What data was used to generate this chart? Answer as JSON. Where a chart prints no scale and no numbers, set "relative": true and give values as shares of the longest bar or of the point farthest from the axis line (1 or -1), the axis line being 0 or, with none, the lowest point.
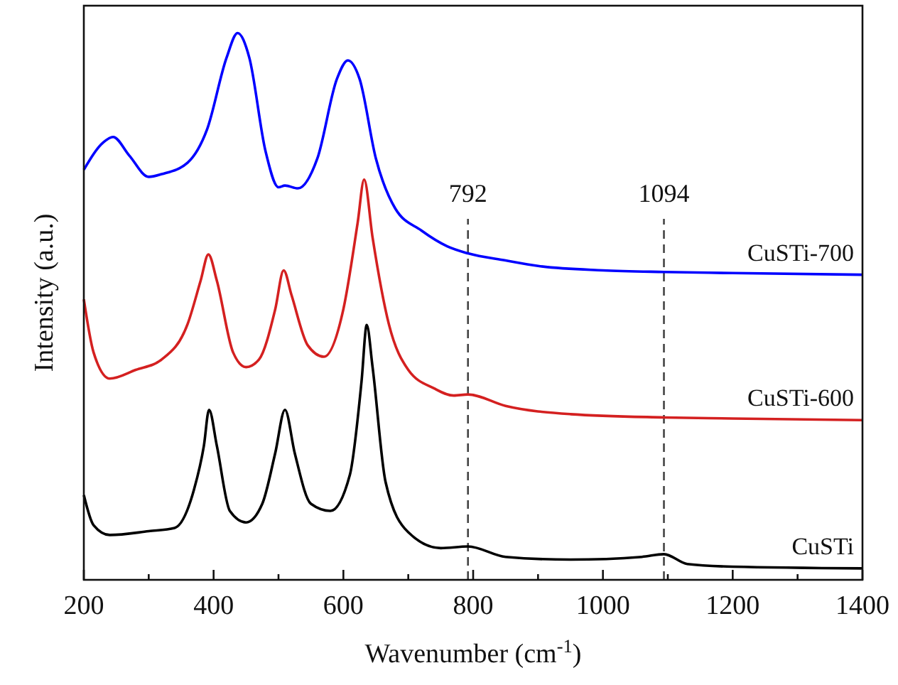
{
  "chart_data": {
    "type": "line",
    "relative": true,
    "xlabel": "Wavenumber (cm$^{-1}$)",
    "ylabel": "Intensity (a.u.)",
    "xlim": [
      200,
      1400
    ],
    "xticks": [
      200,
      400,
      600,
      800,
      1000,
      1200,
      1400
    ],
    "grid": false,
    "legend": false,
    "series": [
      {
        "name": "CuSTi-700",
        "color": "#0000ff",
        "x": [
          200,
          230,
          245,
          270,
          300,
          320,
          360,
          390,
          420,
          437,
          455,
          480,
          500,
          510,
          530,
          560,
          590,
          607,
          625,
          650,
          680,
          720,
          760,
          792,
          850,
          900,
          1000,
          1094,
          1200,
          1400
        ],
        "values": [
          0.75,
          0.8,
          0.81,
          0.776,
          0.737,
          0.742,
          0.763,
          0.824,
          0.955,
          1,
          0.955,
          0.784,
          0.718,
          0.721,
          0.716,
          0.771,
          0.916,
          0.95,
          0.916,
          0.771,
          0.679,
          0.639,
          0.61,
          0.597,
          0.584,
          0.574,
          0.566,
          0.563,
          0.561,
          0.558
        ]
      },
      {
        "name": "CuSTi-600",
        "color": "#d42020",
        "x": [
          200,
          215,
          240,
          280,
          320,
          360,
          380,
          392,
          405,
          430,
          450,
          470,
          495,
          508,
          520,
          545,
          570,
          600,
          622,
          632,
          645,
          670,
          700,
          740,
          770,
          792,
          850,
          950,
          1094,
          1200,
          1400
        ],
        "values": [
          0.513,
          0.416,
          0.368,
          0.384,
          0.403,
          0.468,
          0.547,
          0.595,
          0.547,
          0.416,
          0.389,
          0.403,
          0.495,
          0.566,
          0.521,
          0.429,
          0.408,
          0.495,
          0.653,
          0.732,
          0.626,
          0.468,
          0.384,
          0.35,
          0.337,
          0.339,
          0.318,
          0.303,
          0.297,
          0.295,
          0.292
        ]
      },
      {
        "name": "CuSTi",
        "color": "#000000",
        "x": [
          200,
          215,
          240,
          300,
          340,
          370,
          385,
          393,
          405,
          425,
          450,
          475,
          495,
          510,
          525,
          550,
          580,
          610,
          628,
          636,
          645,
          665,
          700,
          750,
          792,
          850,
          950,
          1060,
          1094,
          1130,
          1200,
          1400
        ],
        "values": [
          0.155,
          0.1,
          0.082,
          0.089,
          0.095,
          0.166,
          0.245,
          0.311,
          0.245,
          0.126,
          0.105,
          0.139,
          0.232,
          0.311,
          0.232,
          0.139,
          0.126,
          0.192,
          0.363,
          0.466,
          0.389,
          0.179,
          0.087,
          0.058,
          0.061,
          0.042,
          0.037,
          0.042,
          0.047,
          0.029,
          0.024,
          0.021
        ]
      }
    ],
    "ref_lines": [
      {
        "axis": "x",
        "value": 792,
        "label": "792",
        "line_style": "dashed",
        "color": "#444444"
      },
      {
        "axis": "x",
        "value": 1094,
        "label": "1094",
        "line_style": "dashed",
        "color": "#444444"
      }
    ]
  }
}
